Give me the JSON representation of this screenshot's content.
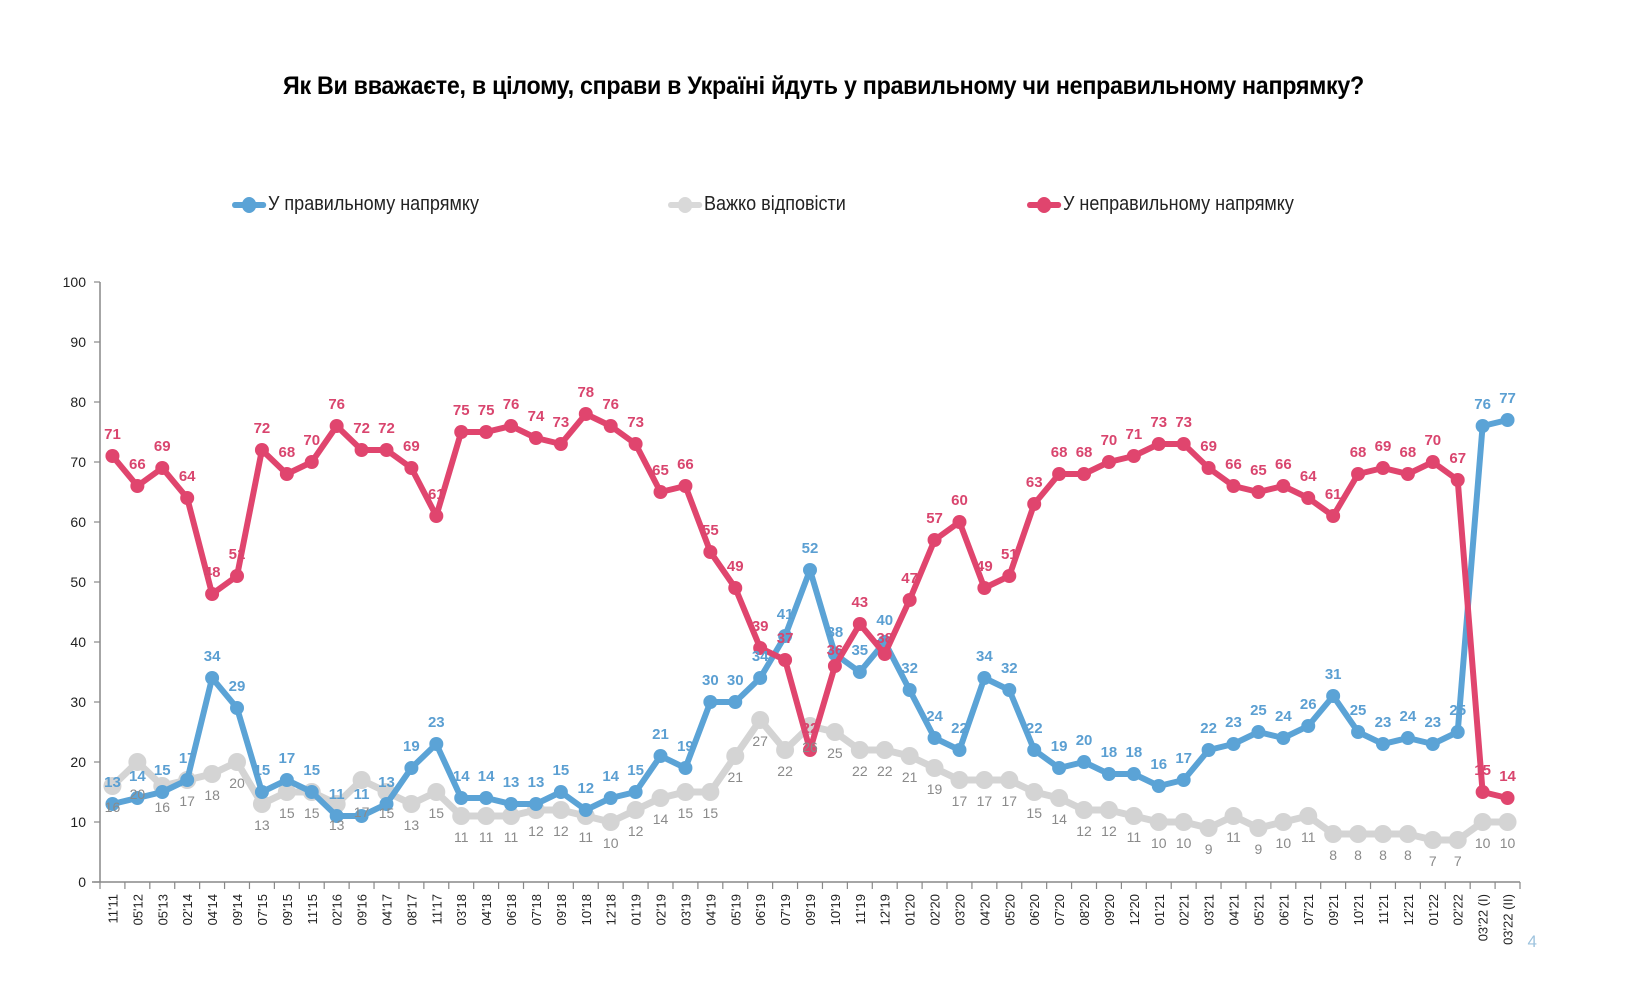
{
  "page": {
    "title": "Як Ви вважаєте, в цілому, справи в Україні йдуть у правильному чи неправильному напрямку?",
    "page_number": "4"
  },
  "legend": [
    {
      "label": "У правильному напрямку",
      "color": "#5ba3d6"
    },
    {
      "label": "Важко відповісти",
      "color": "#d4d4d4"
    },
    {
      "label": "У неправильному напрямку",
      "color": "#e0456e"
    }
  ],
  "chart_data": {
    "type": "line",
    "title": "Як Ви вважаєте, в цілому, справи в Україні йдуть у правильному чи неправильному напрямку?",
    "xlabel": "",
    "ylabel": "",
    "ylim": [
      0,
      100
    ],
    "yticks": [
      0,
      10,
      20,
      30,
      40,
      50,
      60,
      70,
      80,
      90,
      100
    ],
    "grid": false,
    "legend_position": "top",
    "x": [
      "11'11",
      "05'12",
      "05'13",
      "02'14",
      "04'14",
      "09'14",
      "07'15",
      "09'15",
      "11'15",
      "02'16",
      "09'16",
      "04'17",
      "08'17",
      "11'17",
      "03'18",
      "04'18",
      "06'18",
      "07'18",
      "09'18",
      "10'18",
      "12'18",
      "01'19",
      "02'19",
      "03'19",
      "04'19",
      "05'19",
      "06'19",
      "07'19",
      "09'19",
      "10'19",
      "11'19",
      "12'19",
      "01'20",
      "02'20",
      "03'20",
      "04'20",
      "05'20",
      "06'20",
      "07'20",
      "08'20",
      "09'20",
      "12'20",
      "01'21",
      "02'21",
      "03'21",
      "04'21",
      "05'21",
      "06'21",
      "07'21",
      "09'21",
      "10'21",
      "11'21",
      "12'21",
      "01'22",
      "02'22",
      "03'22 (I)",
      "03'22 (II)"
    ],
    "series": [
      {
        "name": "У правильному напрямку",
        "color": "#5ba3d6",
        "values": [
          13,
          14,
          15,
          17,
          34,
          29,
          15,
          17,
          15,
          11,
          11,
          13,
          19,
          23,
          14,
          14,
          13,
          13,
          15,
          12,
          14,
          15,
          21,
          19,
          30,
          30,
          34,
          41,
          52,
          38,
          35,
          40,
          32,
          24,
          22,
          34,
          32,
          22,
          19,
          20,
          18,
          18,
          16,
          17,
          22,
          23,
          25,
          24,
          26,
          31,
          25,
          23,
          24,
          23,
          25,
          76,
          77
        ]
      },
      {
        "name": "Важко відповісти",
        "color": "#d4d4d4",
        "values": [
          16,
          20,
          16,
          17,
          18,
          20,
          13,
          15,
          15,
          13,
          17,
          15,
          13,
          15,
          11,
          11,
          11,
          12,
          12,
          11,
          10,
          12,
          14,
          15,
          15,
          21,
          27,
          22,
          26,
          25,
          22,
          22,
          21,
          19,
          17,
          17,
          17,
          15,
          14,
          12,
          12,
          11,
          10,
          10,
          9,
          11,
          9,
          10,
          11,
          8,
          8,
          8,
          8,
          7,
          7,
          10,
          10
        ]
      },
      {
        "name": "У неправильному напрямку",
        "color": "#e0456e",
        "values": [
          71,
          66,
          69,
          64,
          48,
          51,
          72,
          68,
          70,
          76,
          72,
          72,
          69,
          61,
          75,
          75,
          76,
          74,
          73,
          78,
          76,
          73,
          65,
          66,
          55,
          49,
          39,
          37,
          22,
          36,
          43,
          38,
          47,
          57,
          60,
          49,
          51,
          63,
          68,
          68,
          70,
          71,
          73,
          73,
          69,
          66,
          65,
          66,
          64,
          61,
          68,
          69,
          68,
          70,
          67,
          15,
          14
        ]
      }
    ]
  }
}
